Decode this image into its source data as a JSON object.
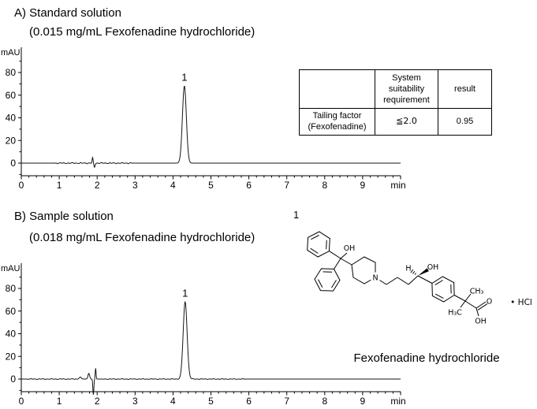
{
  "figure": {
    "panel_a": {
      "title": "A) Standard solution",
      "subtitle": "(0.015 mg/mL Fexofenadine hydrochloride)"
    },
    "panel_b": {
      "title": "B) Sample solution",
      "subtitle": "(0.018 mg/mL Fexofenadine hydrochloride)"
    }
  },
  "table": {
    "col_headers": [
      "",
      "System suitability requirement",
      "result"
    ],
    "row": {
      "name": "Tailing factor (Fexofenadine)",
      "requirement": "≦2.0",
      "result": "0.95"
    }
  },
  "structure": {
    "peak_number": "1",
    "caption": "Fexofenadine hydrochloride",
    "labels": {
      "oh1": "OH",
      "n": "N",
      "h": "H",
      "oh2": "OH",
      "ch3": "CH₃",
      "h3c": "H₃C",
      "o": "O",
      "oh3": "OH",
      "salt": "• HCl"
    }
  },
  "chart_data": [
    {
      "type": "line",
      "panel": "A",
      "title": "Standard solution (0.015 mg/mL Fexofenadine hydrochloride)",
      "xlabel": "min",
      "ylabel": "mAU",
      "xlim": [
        0,
        10
      ],
      "ylim": [
        -12,
        95
      ],
      "x_ticks": [
        0,
        1,
        2,
        3,
        4,
        5,
        6,
        7,
        8,
        9
      ],
      "y_ticks": [
        0,
        20,
        40,
        60,
        80
      ],
      "grid": false,
      "baseline_mAU": 0,
      "peaks": [
        {
          "label": "1",
          "retention_time_min": 4.3,
          "height_mAU": 68,
          "sigma_min": 0.052
        }
      ],
      "artifacts": [
        {
          "time_min": 1.88,
          "height_mAU": 4.5,
          "sigma_min": 0.012
        },
        {
          "time_min": 1.93,
          "height_mAU": -3.5,
          "sigma_min": 0.015
        }
      ],
      "noise_regions": [
        {
          "from_min": 0.85,
          "to_min": 2.95,
          "amplitude_mAU": 0.55
        }
      ]
    },
    {
      "type": "line",
      "panel": "B",
      "title": "Sample solution (0.018 mg/mL Fexofenadine hydrochloride)",
      "xlabel": "min",
      "ylabel": "mAU",
      "xlim": [
        0,
        10
      ],
      "ylim": [
        -16,
        95
      ],
      "x_ticks": [
        0,
        1,
        2,
        3,
        4,
        5,
        6,
        7,
        8,
        9
      ],
      "y_ticks": [
        0,
        20,
        40,
        60,
        80
      ],
      "grid": false,
      "baseline_mAU": 0,
      "peaks": [
        {
          "label": "1",
          "retention_time_min": 4.32,
          "height_mAU": 68,
          "sigma_min": 0.052
        }
      ],
      "artifacts": [
        {
          "time_min": 1.55,
          "height_mAU": 1.5,
          "sigma_min": 0.03
        },
        {
          "time_min": 1.78,
          "height_mAU": 5,
          "sigma_min": 0.022
        },
        {
          "time_min": 1.9,
          "height_mAU": -14,
          "sigma_min": 0.013
        },
        {
          "time_min": 1.96,
          "height_mAU": 9.5,
          "sigma_min": 0.011
        }
      ],
      "noise_regions": [
        {
          "from_min": 0.15,
          "to_min": 1.65,
          "amplitude_mAU": 0.4
        },
        {
          "from_min": 2.15,
          "to_min": 5.9,
          "amplitude_mAU": 0.35
        }
      ]
    }
  ]
}
